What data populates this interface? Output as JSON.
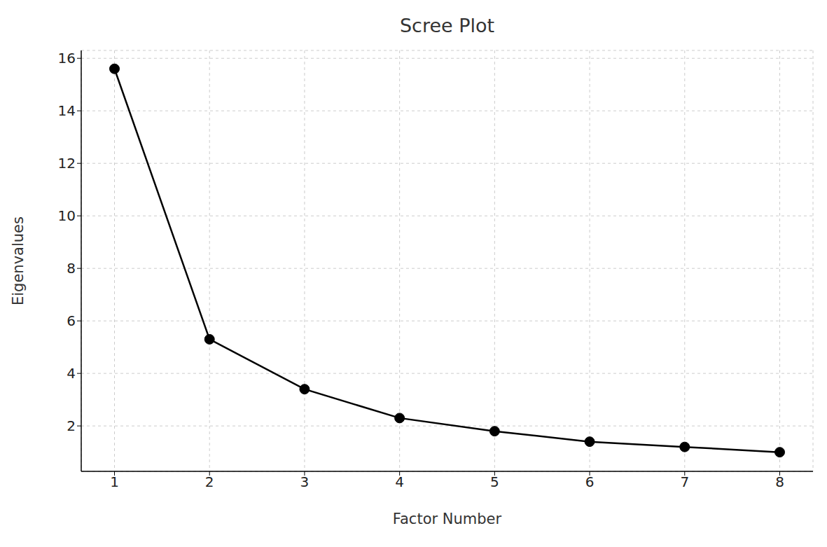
{
  "chart_data": {
    "type": "line",
    "title": "Scree Plot",
    "x_label": "Factor Number",
    "y_label": "Eigenvalues",
    "x": [
      1,
      2,
      3,
      4,
      5,
      6,
      7,
      8
    ],
    "values": [
      15.6,
      5.3,
      3.4,
      2.3,
      1.8,
      1.4,
      1.2,
      1.0
    ],
    "color": "#000000",
    "marker": "o",
    "line_style": "solid",
    "xlim": [
      0.65,
      8.35
    ],
    "ylim": [
      0.27,
      16.3
    ],
    "xticks": [
      1,
      2,
      3,
      4,
      5,
      6,
      7,
      8
    ],
    "yticks": [
      2,
      4,
      6,
      8,
      10,
      12,
      14,
      16
    ],
    "grid": true
  }
}
